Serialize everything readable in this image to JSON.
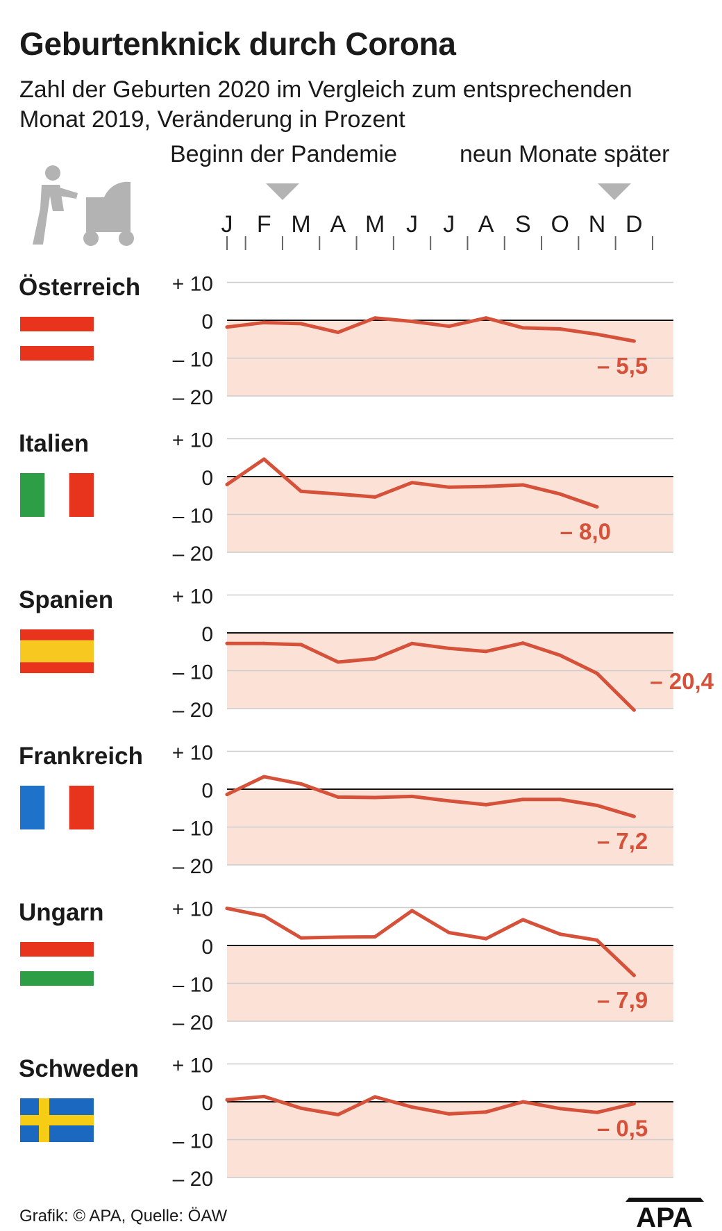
{
  "title": "Geburtenknick durch Corona",
  "subtitle": "Zahl der Geburten 2020 im Vergleich zum entsprechenden Monat 2019, Veränderung in Prozent",
  "annotations": {
    "start": "Beginn der Pandemie",
    "end": "neun Monate später"
  },
  "icons": {
    "stroller": "person-with-stroller-icon",
    "arrows": "triangle-down-icon"
  },
  "source": "Grafik: © APA, Quelle: ÖAW",
  "logo": "APA",
  "colors": {
    "line": "#d6513a",
    "band": "#fbe1d6",
    "grid": "#cccccc",
    "text": "#1a1a1a"
  },
  "chart_data": {
    "type": "line",
    "categories": [
      "J",
      "F",
      "M",
      "A",
      "M",
      "J",
      "J",
      "A",
      "S",
      "O",
      "N",
      "D"
    ],
    "ylim": [
      -20,
      10
    ],
    "yticks": [
      10,
      0,
      -10,
      -20
    ],
    "ytick_labels": [
      "+ 10",
      "0",
      "– 10",
      "– 20"
    ],
    "shaded_below_zero": true,
    "panels": [
      {
        "name": "Österreich",
        "flag": "austria-flag-icon",
        "values": [
          -1.8,
          -0.6,
          -0.9,
          -3.2,
          0.6,
          -0.3,
          -1.6,
          0.6,
          -2.0,
          -2.3,
          -3.7,
          -5.5
        ],
        "end_label": "– 5,5"
      },
      {
        "name": "Italien",
        "flag": "italy-flag-icon",
        "values": [
          -2.1,
          4.6,
          -3.9,
          -4.6,
          -5.4,
          -1.6,
          -2.8,
          -2.6,
          -2.2,
          -4.6,
          -8.0,
          null
        ],
        "end_label": "– 8,0"
      },
      {
        "name": "Spanien",
        "flag": "spain-flag-icon",
        "values": [
          -2.8,
          -2.8,
          -3.1,
          -7.7,
          -6.8,
          -2.8,
          -4.1,
          -4.9,
          -2.7,
          -5.9,
          -10.7,
          -20.4
        ],
        "end_label": "– 20,4"
      },
      {
        "name": "Frankreich",
        "flag": "france-flag-icon",
        "values": [
          -1.4,
          3.3,
          1.4,
          -2.1,
          -2.2,
          -1.9,
          -3.1,
          -4.1,
          -2.7,
          -2.7,
          -4.3,
          -7.2
        ],
        "end_label": "– 7,2"
      },
      {
        "name": "Ungarn",
        "flag": "hungary-flag-icon",
        "values": [
          9.8,
          7.8,
          2.0,
          2.2,
          2.3,
          9.2,
          3.4,
          1.8,
          6.8,
          3.0,
          1.4,
          -7.9
        ],
        "end_label": "– 7,9"
      },
      {
        "name": "Schweden",
        "flag": "sweden-flag-icon",
        "values": [
          0.5,
          1.4,
          -1.7,
          -3.4,
          1.3,
          -1.4,
          -3.2,
          -2.7,
          0.0,
          -1.8,
          -2.8,
          -0.5
        ],
        "end_label": "– 0,5"
      }
    ]
  }
}
